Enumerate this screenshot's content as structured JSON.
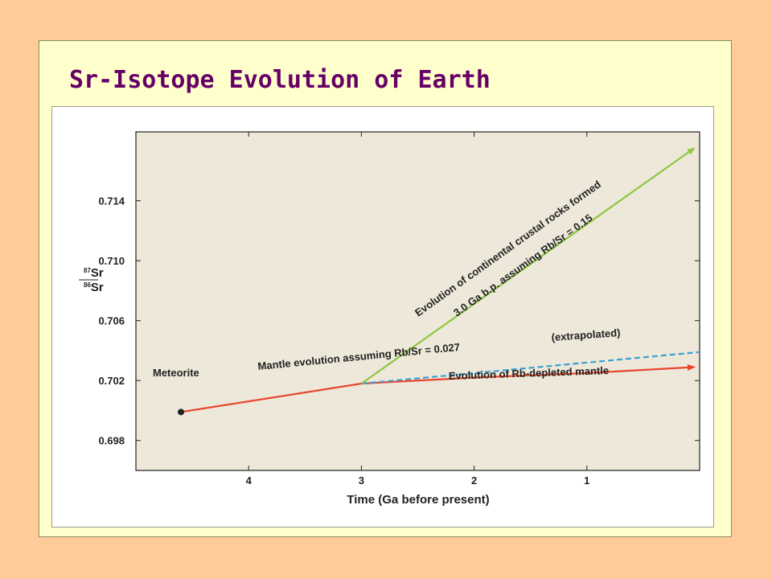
{
  "slide": {
    "title": "Sr-Isotope Evolution of Earth",
    "colors": {
      "background": "#FFCC99",
      "slide": "#FFFFCC",
      "title": "#660066",
      "plot_area": "#EDE8DA"
    }
  },
  "chart_data": {
    "type": "line",
    "xlabel": "Time (Ga before present)",
    "ylabel_top": "87Sr",
    "ylabel_bottom": "86Sr",
    "xlim": [
      5.0,
      0.0
    ],
    "ylim": [
      0.696,
      0.7186
    ],
    "x_reversed": true,
    "x_ticks": [
      4,
      3,
      2,
      1
    ],
    "x_tick_labels": [
      "4",
      "3",
      "2",
      "1"
    ],
    "y_ticks": [
      0.698,
      0.702,
      0.706,
      0.71,
      0.714
    ],
    "y_tick_labels": [
      "0.698",
      "0.702",
      "0.706",
      "0.710",
      "0.714"
    ],
    "grid": false,
    "series": [
      {
        "key": "mantle",
        "color": "#E8472E",
        "style": "solid",
        "points": [
          [
            4.6,
            0.6999
          ],
          [
            3.0,
            0.7018
          ]
        ]
      },
      {
        "key": "depleted",
        "color": "#E8472E",
        "style": "solid",
        "arrow": true,
        "points": [
          [
            3.0,
            0.7018
          ],
          [
            2.0,
            0.7022
          ],
          [
            1.0,
            0.7025
          ],
          [
            0.05,
            0.7029
          ]
        ]
      },
      {
        "key": "extrapolated",
        "color": "#3AA0D0",
        "style": "dashed",
        "points": [
          [
            3.0,
            0.7018
          ],
          [
            0.0,
            0.7039
          ]
        ]
      },
      {
        "key": "crustal",
        "color": "#8DC63F",
        "style": "solid",
        "arrow": true,
        "points": [
          [
            3.0,
            0.7018
          ],
          [
            0.05,
            0.7175
          ]
        ]
      }
    ],
    "meteorite_point": [
      4.6,
      0.6999
    ],
    "annotations": {
      "meteorite": "Meteorite",
      "mantle": "Mantle evolution assuming Rb/Sr = 0.027",
      "extrapolated": "(extrapolated)",
      "depleted": "Evolution of Rb-depleted mantle",
      "crustal_line1": "Evolution of continental crustal rocks formed",
      "crustal_line2": "3.0 Ga b.p. assuming Rb/Sr = 0.15"
    }
  }
}
